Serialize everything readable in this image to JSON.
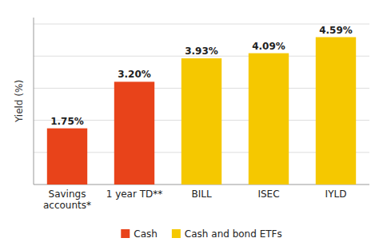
{
  "chart_data": {
    "type": "bar",
    "ylabel": "Yield (%)",
    "categories": [
      "Savings\naccounts*",
      "1 year TD**",
      "BILL",
      "ISEC",
      "IYLD"
    ],
    "series": [
      {
        "name": "Cash",
        "color": "#E8431A",
        "values": [
          1.75,
          3.2,
          null,
          null,
          null
        ],
        "value_labels": [
          "1.75%",
          "3.20%",
          null,
          null,
          null
        ]
      },
      {
        "name": "Cash and bond ETFs",
        "color": "#F5C800",
        "values": [
          null,
          null,
          3.93,
          4.09,
          4.59
        ],
        "value_labels": [
          null,
          null,
          "3.93%",
          "4.09%",
          "4.59%"
        ]
      }
    ],
    "ylim": [
      0,
      5.2
    ],
    "yticks": [
      1,
      2,
      3,
      4,
      5
    ],
    "grid": true,
    "tick_labels": "x",
    "data_labels": true,
    "legend": "bottom"
  }
}
